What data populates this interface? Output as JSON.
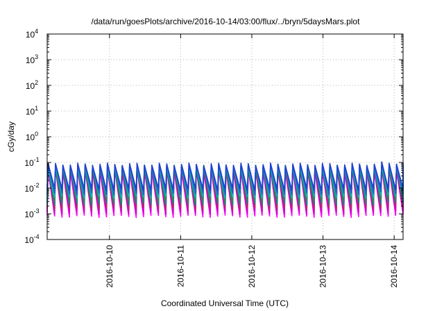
{
  "chart_data": {
    "type": "line",
    "title": "/data/run/goesPlots/archive/2016-10-14/03:00/flux/../bryn/5daysMars.plot",
    "xlabel": "Coordinated Universal Time (UTC)",
    "ylabel": "cGy/day",
    "x_axis": {
      "start": "2016-10-09 03:00",
      "end": "2016-10-14 03:00",
      "ticks": [
        "2016-10-10",
        "2016-10-11",
        "2016-10-12",
        "2016-10-13",
        "2016-10-14"
      ]
    },
    "y_axis": {
      "scale": "log",
      "ylim": [
        0.0001,
        10000
      ],
      "ticks": [
        {
          "value": 0.0001,
          "base": "10",
          "exp": "-4"
        },
        {
          "value": 0.001,
          "base": "10",
          "exp": "-3"
        },
        {
          "value": 0.01,
          "base": "10",
          "exp": "-2"
        },
        {
          "value": 0.1,
          "base": "10",
          "exp": "-1"
        },
        {
          "value": 1,
          "base": "10",
          "exp": "0"
        },
        {
          "value": 10,
          "base": "10",
          "exp": "1"
        },
        {
          "value": 100,
          "base": "10",
          "exp": "2"
        },
        {
          "value": 1000,
          "base": "10",
          "exp": "3"
        },
        {
          "value": 10000,
          "base": "10",
          "exp": "4"
        }
      ]
    },
    "grid": true,
    "legend": "none",
    "sawtooth_cycles": 48,
    "series": [
      {
        "color": "#ff00ff",
        "peak": 0.05,
        "trough": 0.0008
      },
      {
        "color": "#cc00cc",
        "peak": 0.055,
        "trough": 0.0011
      },
      {
        "color": "#b03060",
        "peak": 0.06,
        "trough": 0.0016
      },
      {
        "color": "#008b8b",
        "peak": 0.065,
        "trough": 0.0024
      },
      {
        "color": "#2e8b57",
        "peak": 0.07,
        "trough": 0.0032
      },
      {
        "color": "#00bfbf",
        "peak": 0.072,
        "trough": 0.0045
      },
      {
        "color": "#1e64c8",
        "peak": 0.078,
        "trough": 0.006
      },
      {
        "color": "#2040d0",
        "peak": 0.085,
        "trough": 0.009
      }
    ]
  }
}
